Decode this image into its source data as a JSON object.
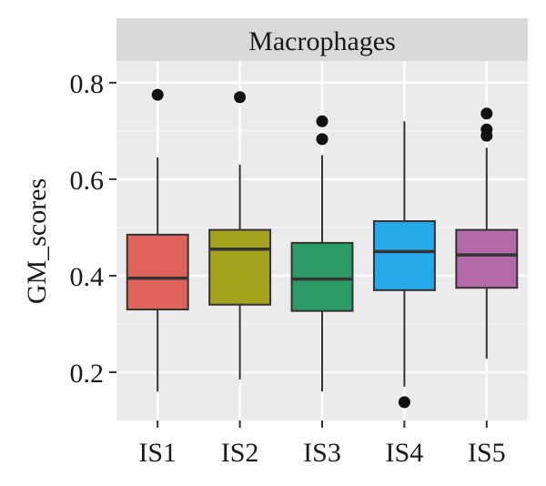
{
  "chart_data": {
    "type": "boxplot",
    "facet_label": "Macrophages",
    "ylabel": "GM_scores",
    "xlabel": "",
    "ylim": [
      0.1,
      0.845
    ],
    "y_ticks": [
      0.2,
      0.4,
      0.6,
      0.8
    ],
    "y_tick_labels": [
      "0.2",
      "0.4",
      "0.6",
      "0.8"
    ],
    "grid": true,
    "legend": "none",
    "categories": [
      "IS1",
      "IS2",
      "IS3",
      "IS4",
      "IS5"
    ],
    "colors": [
      "#E0645C",
      "#A3A31E",
      "#2C9B65",
      "#26A9E8",
      "#B469A8"
    ],
    "boxes": [
      {
        "category": "IS1",
        "whisker_low": 0.16,
        "q1": 0.33,
        "median": 0.395,
        "q3": 0.485,
        "whisker_high": 0.645,
        "outliers": [
          0.775
        ]
      },
      {
        "category": "IS2",
        "whisker_low": 0.185,
        "q1": 0.34,
        "median": 0.455,
        "q3": 0.495,
        "whisker_high": 0.63,
        "outliers": [
          0.77
        ]
      },
      {
        "category": "IS3",
        "whisker_low": 0.16,
        "q1": 0.327,
        "median": 0.393,
        "q3": 0.468,
        "whisker_high": 0.65,
        "outliers": [
          0.72,
          0.683
        ]
      },
      {
        "category": "IS4",
        "whisker_low": 0.17,
        "q1": 0.37,
        "median": 0.45,
        "q3": 0.513,
        "whisker_high": 0.72,
        "outliers": [
          0.138
        ]
      },
      {
        "category": "IS5",
        "whisker_low": 0.228,
        "q1": 0.375,
        "median": 0.443,
        "q3": 0.495,
        "whisker_high": 0.665,
        "outliers": [
          0.736,
          0.703,
          0.69
        ]
      }
    ]
  }
}
